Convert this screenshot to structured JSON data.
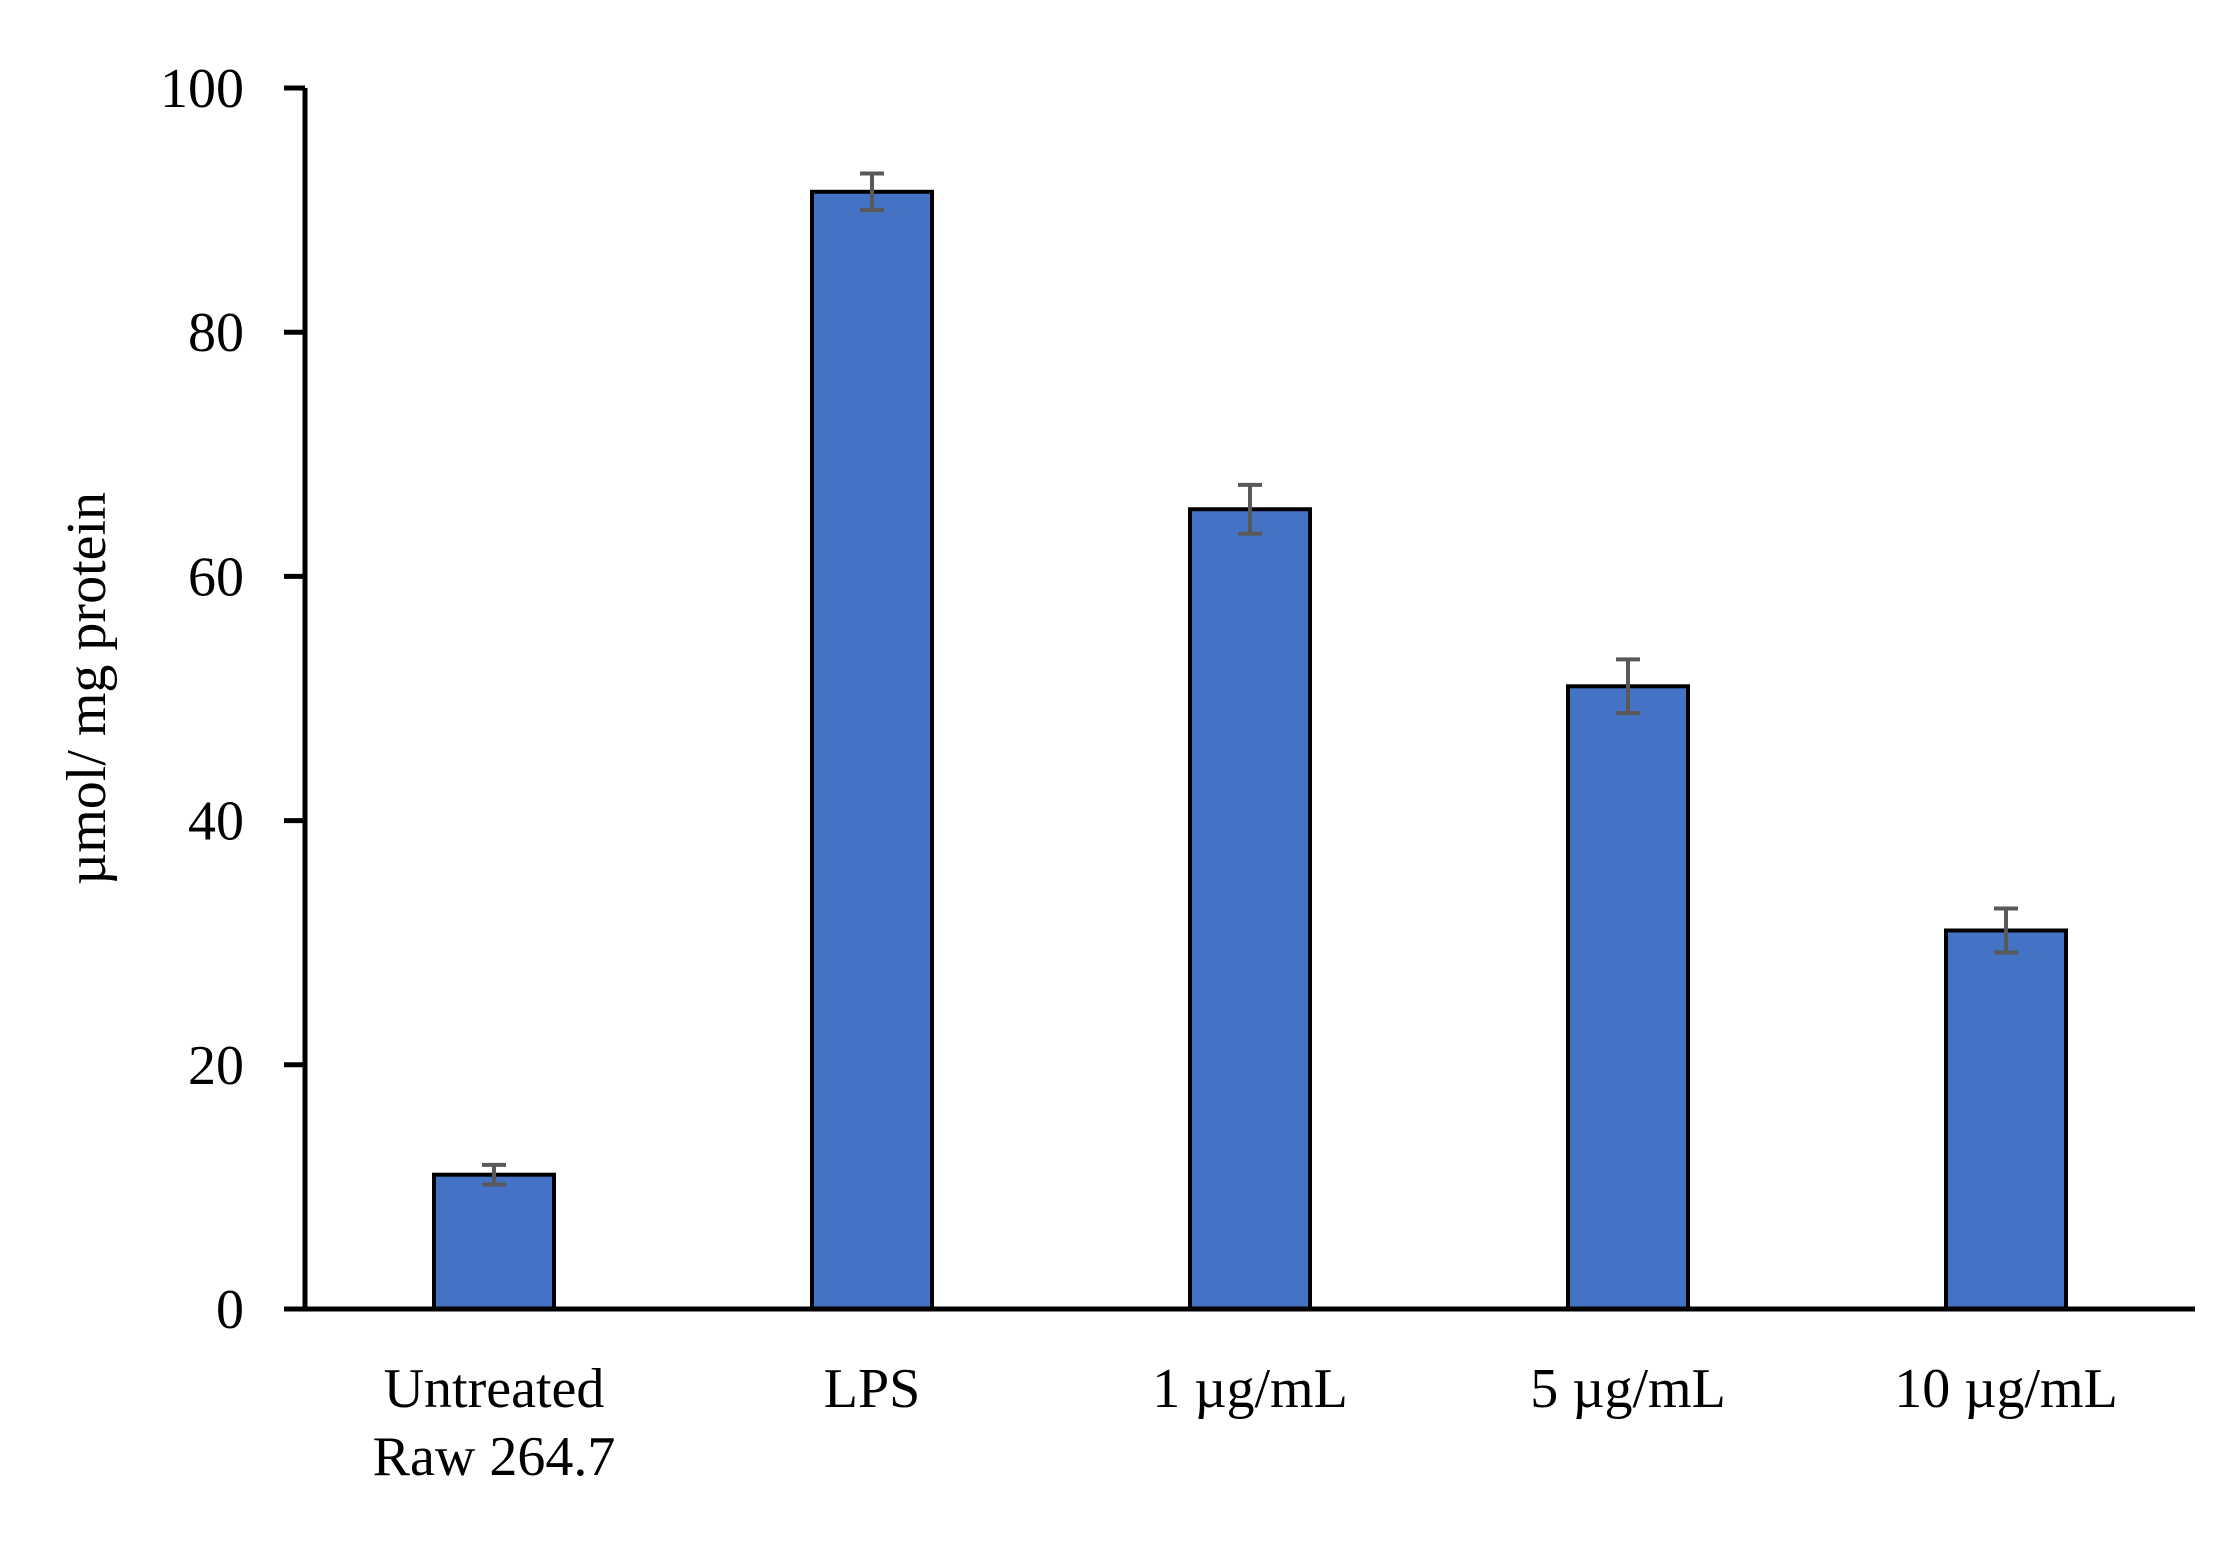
{
  "chart_data": {
    "type": "bar",
    "title": "",
    "xlabel": "",
    "ylabel": "µmol/ mg protein",
    "categories": [
      [
        "Untreated",
        "Raw 264.7"
      ],
      [
        "LPS"
      ],
      [
        "1 µg/mL"
      ],
      [
        "5 µg/mL"
      ],
      [
        "10 µg/mL"
      ]
    ],
    "series": [
      {
        "values": [
          11,
          91.5,
          65.5,
          51,
          31
        ],
        "error": [
          0.8,
          1.5,
          2.0,
          2.2,
          1.8
        ]
      }
    ],
    "ylim": [
      0,
      100
    ],
    "yticks": [
      0,
      20,
      40,
      60,
      80,
      100
    ],
    "grid": false,
    "legend": "none",
    "colors": {
      "bar_fill": "#4472C4",
      "bar_stroke": "#000000",
      "error_bar": "#595959",
      "axis": "#000000"
    }
  }
}
